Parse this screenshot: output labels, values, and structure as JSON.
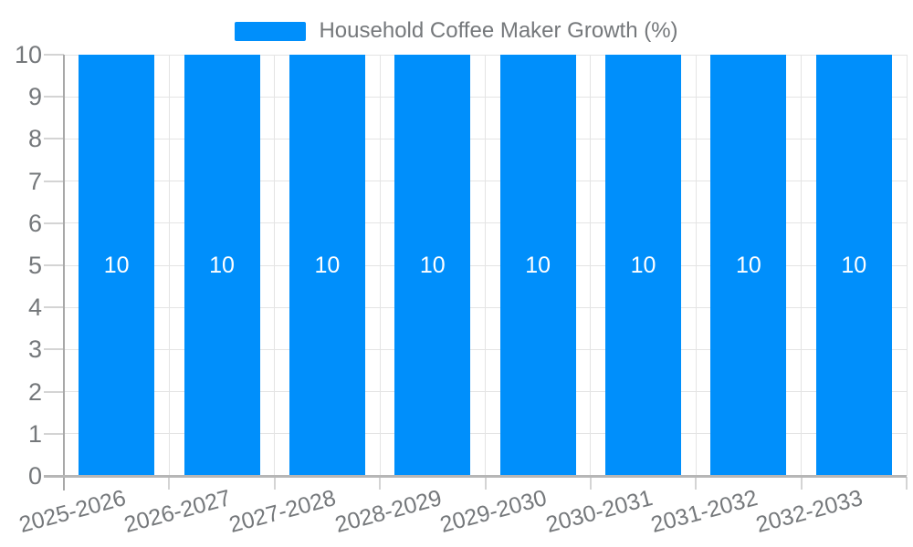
{
  "legend": {
    "label": "Household Coffee Maker Growth (%)",
    "swatch_color": "#008FFB",
    "position": "top"
  },
  "chart_data": {
    "type": "bar",
    "title": "Household Coffee Maker Growth (%)",
    "categories": [
      "2025-2026",
      "2026-2027",
      "2027-2028",
      "2028-2029",
      "2029-2030",
      "2030-2031",
      "2031-2032",
      "2032-2033"
    ],
    "values": [
      10,
      10,
      10,
      10,
      10,
      10,
      10,
      10
    ],
    "data_labels": [
      "10",
      "10",
      "10",
      "10",
      "10",
      "10",
      "10",
      "10"
    ],
    "ylabel": "",
    "xlabel": "",
    "ylim": [
      0,
      10
    ],
    "ytick_step": 1,
    "yticks": [
      "0",
      "1",
      "2",
      "3",
      "4",
      "5",
      "6",
      "7",
      "8",
      "9",
      "10"
    ],
    "grid": "on",
    "legend_position": "top",
    "x_label_rotation_deg": -15
  },
  "colors": {
    "bar": "#008FFB",
    "grid": "#e4e4e4",
    "axis_text": "#75787b",
    "data_label": "#ffffff",
    "x_axis_line": "#b6b6b6",
    "y_axis_line": "#a8a8a8",
    "tick": "#d4d4d4"
  }
}
